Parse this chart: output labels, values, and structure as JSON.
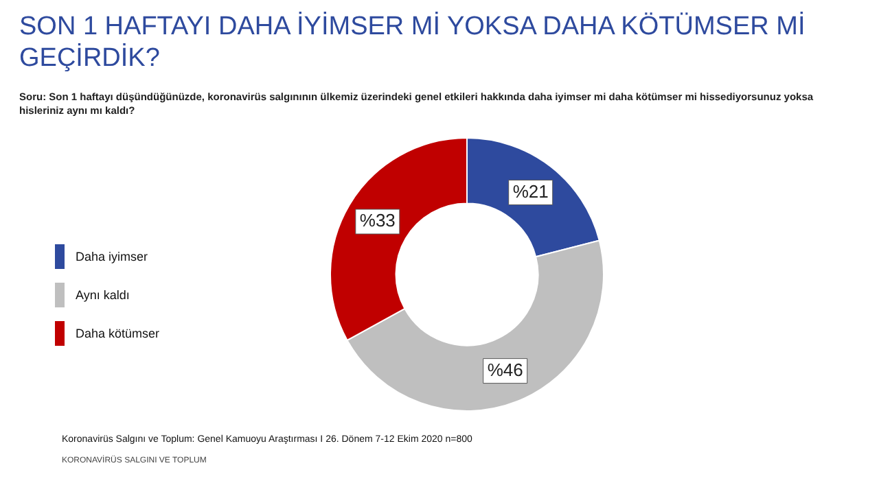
{
  "chart_data": {
    "type": "donut",
    "title": "SON 1 HAFTAYI DAHA İYİMSER Mİ YOKSA DAHA KÖTÜMSER Mİ GEÇİRDİK?",
    "subtitle": "Soru: Son 1 haftayı düşündüğünüzde, koronavirüs salgınının ülkemiz üzerindeki genel etkileri hakkında daha iyimser mi daha kötümser mi hissediyorsunuz yoksa hisleriniz aynı mı kaldı?",
    "categories": [
      "Daha iyimser",
      "Aynı kaldı",
      "Daha kötümser"
    ],
    "values": [
      21,
      46,
      33
    ],
    "colors": [
      "#2e4a9e",
      "#bfbfbf",
      "#c00000"
    ],
    "value_labels": [
      "%21",
      "%46",
      "%33"
    ],
    "legend": "left",
    "annotations": [
      "Koronavirüs Salgını ve Toplum: Genel Kamuoyu Araştırması I 26. Dönem 7-12 Ekim 2020 n=800",
      "KORONAVİRÜS SALGINI VE TOPLUM"
    ]
  }
}
